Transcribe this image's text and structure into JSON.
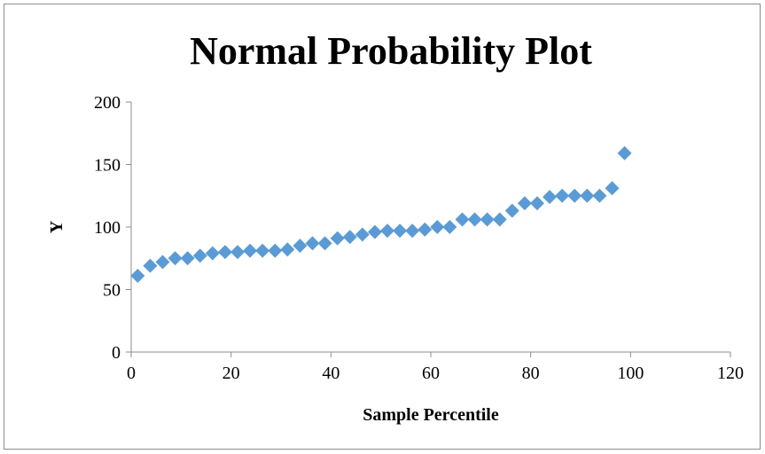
{
  "chart_data": {
    "type": "scatter",
    "title": "Normal Probability Plot",
    "xlabel": "Sample Percentile",
    "ylabel": "Y",
    "xlim": [
      0,
      120
    ],
    "ylim": [
      0,
      200
    ],
    "x_ticks": [
      0,
      20,
      40,
      60,
      80,
      100,
      120
    ],
    "y_ticks": [
      0,
      50,
      100,
      150,
      200
    ],
    "x_tick_labels": [
      "0",
      "20",
      "40",
      "60",
      "80",
      "100",
      "120"
    ],
    "y_tick_labels": [
      "0",
      "50",
      "100",
      "150",
      "200"
    ],
    "grid": false,
    "legend": "none",
    "marker": "diamond",
    "marker_color": "#5b9bd5",
    "series": [
      {
        "x": [
          1.3,
          3.8,
          6.3,
          8.8,
          11.3,
          13.8,
          16.3,
          18.8,
          21.3,
          23.8,
          26.3,
          28.8,
          31.3,
          33.8,
          36.3,
          38.8,
          41.3,
          43.8,
          46.3,
          48.8,
          51.3,
          53.8,
          56.3,
          58.8,
          61.3,
          63.8,
          66.3,
          68.8,
          71.3,
          73.8,
          76.3,
          78.8,
          81.3,
          83.8,
          86.3,
          88.8,
          91.3,
          93.8,
          96.3,
          98.8
        ],
        "y": [
          61,
          69,
          72,
          75,
          75,
          77,
          79,
          80,
          80,
          81,
          81,
          81,
          82,
          85,
          87,
          87,
          91,
          92,
          94,
          96,
          97,
          97,
          97,
          98,
          100,
          100,
          106,
          106,
          106,
          106,
          113,
          119,
          119,
          124,
          125,
          125,
          125,
          125,
          131,
          159
        ]
      }
    ]
  }
}
